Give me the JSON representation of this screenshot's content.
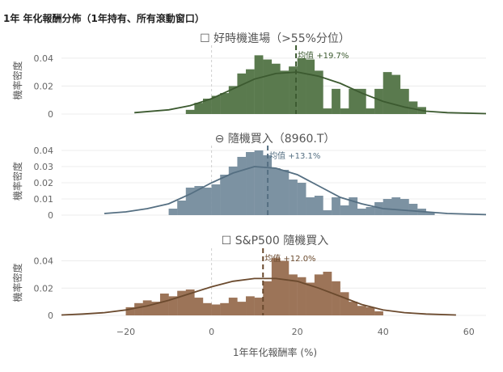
{
  "title": "1年 年化報酬分佈（1年持有、所有滾動窗口）",
  "xlabel": "1年年化報酬率 (%)",
  "chart_data": [
    {
      "type": "bar",
      "title": "☐ 好時機進場（>55%分位）",
      "ylabel": "機率密度",
      "color": "#5a7a4e",
      "line_color": "#3c5a30",
      "mean": 19.7,
      "mean_label": "均值 +19.7%",
      "xlim": [
        -35,
        64
      ],
      "ylim": [
        0,
        0.048
      ],
      "yticks": [
        "0",
        "0.02",
        "0.04"
      ],
      "bins": [
        [
          -6,
          0.003
        ],
        [
          -4,
          0.008
        ],
        [
          -2,
          0.011
        ],
        [
          0,
          0.013
        ],
        [
          2,
          0.015
        ],
        [
          4,
          0.02
        ],
        [
          6,
          0.029
        ],
        [
          8,
          0.032
        ],
        [
          10,
          0.042
        ],
        [
          12,
          0.039
        ],
        [
          14,
          0.036
        ],
        [
          16,
          0.031
        ],
        [
          18,
          0.034
        ],
        [
          20,
          0.04
        ],
        [
          22,
          0.039
        ],
        [
          24,
          0.031
        ],
        [
          26,
          0.004
        ],
        [
          28,
          0.018
        ],
        [
          30,
          0.004
        ],
        [
          32,
          0.018
        ],
        [
          34,
          0.018
        ],
        [
          36,
          0.004
        ],
        [
          38,
          0.018
        ],
        [
          40,
          0.03
        ],
        [
          42,
          0.028
        ],
        [
          44,
          0.018
        ],
        [
          46,
          0.009
        ],
        [
          48,
          0.005
        ]
      ],
      "kde": [
        [
          -18,
          0.001
        ],
        [
          -10,
          0.003
        ],
        [
          -5,
          0.006
        ],
        [
          0,
          0.011
        ],
        [
          5,
          0.018
        ],
        [
          10,
          0.025
        ],
        [
          15,
          0.029
        ],
        [
          20,
          0.03
        ],
        [
          25,
          0.027
        ],
        [
          30,
          0.022
        ],
        [
          35,
          0.015
        ],
        [
          40,
          0.009
        ],
        [
          45,
          0.005
        ],
        [
          50,
          0.002
        ],
        [
          55,
          0.001
        ],
        [
          64,
          0.0003
        ]
      ]
    },
    {
      "type": "bar",
      "title": "⊖ 隨機買入（8960.T）",
      "ylabel": "機率密度",
      "color": "#7c92a2",
      "line_color": "#556f82",
      "mean": 13.1,
      "mean_label": "均值 +13.1%",
      "xlim": [
        -35,
        64
      ],
      "ylim": [
        0,
        0.042
      ],
      "yticks": [
        "0",
        "0.01",
        "0.02",
        "0.03",
        "0.04"
      ],
      "bins": [
        [
          -10,
          0.004
        ],
        [
          -8,
          0.009
        ],
        [
          -6,
          0.017
        ],
        [
          -4,
          0.018
        ],
        [
          -2,
          0.017
        ],
        [
          0,
          0.019
        ],
        [
          2,
          0.025
        ],
        [
          4,
          0.03
        ],
        [
          6,
          0.036
        ],
        [
          8,
          0.039
        ],
        [
          10,
          0.04
        ],
        [
          12,
          0.037
        ],
        [
          14,
          0.029
        ],
        [
          16,
          0.028
        ],
        [
          18,
          0.022
        ],
        [
          20,
          0.02
        ],
        [
          22,
          0.011
        ],
        [
          24,
          0.012
        ],
        [
          26,
          0.003
        ],
        [
          28,
          0.011
        ],
        [
          30,
          0.006
        ],
        [
          32,
          0.011
        ],
        [
          34,
          0.004
        ],
        [
          36,
          0.005
        ],
        [
          38,
          0.008
        ],
        [
          40,
          0.01
        ],
        [
          42,
          0.011
        ],
        [
          44,
          0.01
        ],
        [
          46,
          0.007
        ],
        [
          48,
          0.004
        ],
        [
          50,
          0.002
        ]
      ],
      "kde": [
        [
          -25,
          0.001
        ],
        [
          -20,
          0.002
        ],
        [
          -15,
          0.004
        ],
        [
          -10,
          0.007
        ],
        [
          -5,
          0.013
        ],
        [
          0,
          0.02
        ],
        [
          5,
          0.026
        ],
        [
          10,
          0.03
        ],
        [
          15,
          0.029
        ],
        [
          20,
          0.025
        ],
        [
          25,
          0.018
        ],
        [
          30,
          0.011
        ],
        [
          35,
          0.007
        ],
        [
          40,
          0.004
        ],
        [
          45,
          0.003
        ],
        [
          50,
          0.002
        ],
        [
          55,
          0.001
        ],
        [
          64,
          0.0003
        ]
      ]
    },
    {
      "type": "bar",
      "title": "☐ S&P500 隨機買入",
      "ylabel": "機率密度",
      "color": "#9c7458",
      "line_color": "#6b4a2e",
      "mean": 12.0,
      "mean_label": "均值 +12.0%",
      "xlim": [
        -35,
        64
      ],
      "ylim": [
        0,
        0.048
      ],
      "yticks": [
        "0",
        "0.02",
        "0.04"
      ],
      "bins": [
        [
          -20,
          0.006
        ],
        [
          -18,
          0.009
        ],
        [
          -16,
          0.011
        ],
        [
          -14,
          0.01
        ],
        [
          -12,
          0.016
        ],
        [
          -10,
          0.014
        ],
        [
          -8,
          0.018
        ],
        [
          -6,
          0.019
        ],
        [
          -4,
          0.013
        ],
        [
          -2,
          0.009
        ],
        [
          0,
          0.008
        ],
        [
          2,
          0.009
        ],
        [
          4,
          0.013
        ],
        [
          6,
          0.01
        ],
        [
          8,
          0.014
        ],
        [
          10,
          0.013
        ],
        [
          12,
          0.025
        ],
        [
          14,
          0.042
        ],
        [
          16,
          0.04
        ],
        [
          18,
          0.03
        ],
        [
          20,
          0.028
        ],
        [
          22,
          0.024
        ],
        [
          24,
          0.03
        ],
        [
          26,
          0.032
        ],
        [
          28,
          0.025
        ],
        [
          30,
          0.017
        ],
        [
          32,
          0.01
        ],
        [
          34,
          0.007
        ],
        [
          36,
          0.006
        ],
        [
          38,
          0.003
        ]
      ],
      "kde": [
        [
          -35,
          0.0003
        ],
        [
          -30,
          0.001
        ],
        [
          -25,
          0.002
        ],
        [
          -20,
          0.004
        ],
        [
          -15,
          0.007
        ],
        [
          -10,
          0.011
        ],
        [
          -5,
          0.016
        ],
        [
          0,
          0.021
        ],
        [
          5,
          0.025
        ],
        [
          10,
          0.027
        ],
        [
          15,
          0.027
        ],
        [
          20,
          0.025
        ],
        [
          25,
          0.02
        ],
        [
          30,
          0.014
        ],
        [
          35,
          0.008
        ],
        [
          40,
          0.004
        ],
        [
          45,
          0.002
        ],
        [
          50,
          0.001
        ],
        [
          57,
          0.0003
        ]
      ]
    }
  ],
  "xticks": [
    "−20",
    "0",
    "20",
    "40",
    "60"
  ],
  "xtick_values": [
    -20,
    0,
    20,
    40,
    60
  ]
}
